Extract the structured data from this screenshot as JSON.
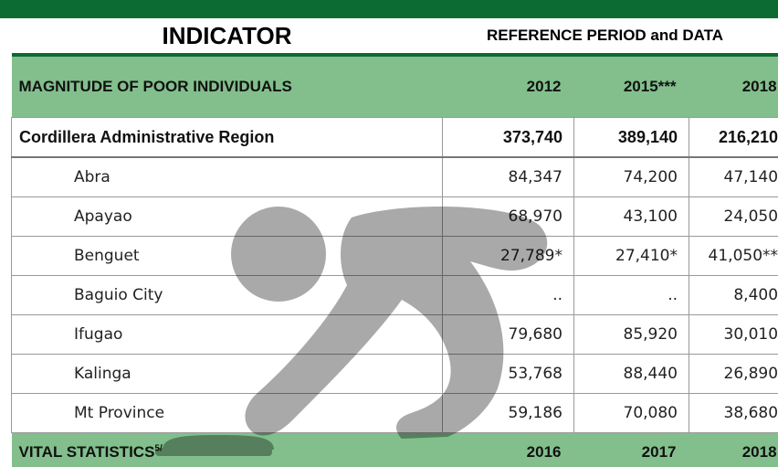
{
  "header": {
    "indicator": "INDICATOR",
    "reference_period": "REFERENCE PERIOD and DATA"
  },
  "sections": [
    {
      "title": "MAGNITUDE OF POOR INDIVIDUALS",
      "years": [
        "2012",
        "2015***",
        "2018"
      ],
      "rows": [
        {
          "name": "Cordillera Administrative Region",
          "values": [
            "373,740",
            "389,140",
            "216,210"
          ]
        },
        {
          "name": "Abra",
          "values": [
            "84,347",
            "74,200",
            "47,140"
          ]
        },
        {
          "name": "Apayao",
          "values": [
            "68,970",
            "43,100",
            "24,050"
          ]
        },
        {
          "name": "Benguet",
          "values": [
            "27,789*",
            "27,410*",
            "41,050**"
          ]
        },
        {
          "name": "Baguio City",
          "values": [
            "..",
            "..",
            "8,400"
          ]
        },
        {
          "name": "Ifugao",
          "values": [
            "79,680",
            "85,920",
            "30,010"
          ]
        },
        {
          "name": "Kalinga",
          "values": [
            "53,768",
            "88,440",
            "26,890"
          ]
        },
        {
          "name": "Mt Province",
          "values": [
            "59,186",
            "70,080",
            "38,680"
          ]
        }
      ]
    },
    {
      "title": "VITAL STATISTICS",
      "note": "5/",
      "years": [
        "2016",
        "2017",
        "2018"
      ],
      "rows": []
    }
  ]
}
